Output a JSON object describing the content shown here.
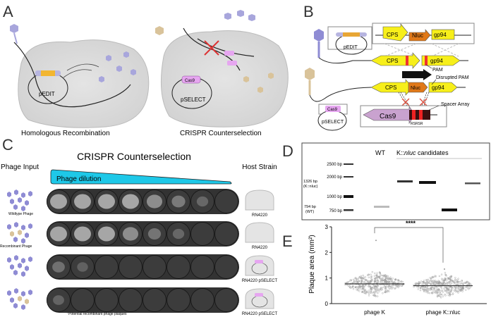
{
  "panels": {
    "a": {
      "label": "A",
      "left_caption": "Homologous Recombination",
      "right_caption": "CRISPR Counterselection",
      "plasmid_left": "pEDIT",
      "plasmid_right": "pSELECT",
      "cas9_tag": "Cas9"
    },
    "b": {
      "label": "B",
      "plasmid_top": "pEDIT",
      "plasmid_bottom": "pSELECT",
      "cas9_tag": "Cas9",
      "insert_genes": [
        "CPS",
        "Nluc",
        "gp94"
      ],
      "wt_genes": [
        "CPS",
        "gp94"
      ],
      "recomb_genes": [
        "CPS",
        "Nluc",
        "gp94"
      ],
      "pam": "PAM",
      "disrupted_pam": "Disrupted PAM",
      "spacer_array": "Spacer Array",
      "cas9": "Cas9",
      "rsrsr": "RSRSR"
    },
    "c": {
      "label": "C",
      "title": "CRISPR Counterselection",
      "phage_input": "Phage Input",
      "dilution": "Phage dilution",
      "host_strain": "Host Strain",
      "rows": [
        {
          "input_label": "Wildtype Phage",
          "host": "RN4220",
          "plaques": [
            1,
            1,
            1,
            1,
            0.8,
            0.5,
            0.2,
            0
          ]
        },
        {
          "input_label": "Recombinant Phage",
          "host": "RN4220",
          "plaques": [
            1,
            1,
            1,
            0.8,
            0.4,
            0.2,
            0,
            0
          ]
        },
        {
          "input_label": "",
          "host": "RN4220 pSELECT",
          "plaques": [
            0.35,
            0.1,
            0,
            0,
            0,
            0,
            0,
            0
          ]
        },
        {
          "input_label": "",
          "host": "RN4220 pSELECT",
          "plaques": [
            0.15,
            0,
            0,
            0,
            0,
            0,
            0,
            0
          ]
        }
      ],
      "annotation": "Potential recombinant phage plaques",
      "cas9_tag": "Cas9"
    },
    "d": {
      "label": "D",
      "wt": "WT",
      "candidates_prefix": "K::",
      "candidates_italic": "nluc",
      "candidates_suffix": " candidates",
      "ladder": [
        "2500 bp",
        "2000 bp",
        "1000 bp",
        "750 bp"
      ],
      "side_top_1": "1326 bp",
      "side_top_2": "(K::nluc)",
      "side_bottom_1": "794 bp",
      "side_bottom_2": "(WT)"
    },
    "e": {
      "label": "E",
      "significance": "****"
    }
  },
  "chart_data": {
    "type": "scatter",
    "title": "",
    "xlabel": "",
    "ylabel": "Plaque area (mm²)",
    "ylim": [
      0,
      3
    ],
    "yticks": [
      "0",
      "1",
      "2",
      "3"
    ],
    "categories": [
      "phage K",
      "phage K::nluc"
    ],
    "series": [
      {
        "name": "phage K",
        "median": 0.77,
        "min": 0.05,
        "max": 2.47
      },
      {
        "name": "phage K::nluc",
        "median": 0.7,
        "min": 0.02,
        "max": 1.35
      }
    ],
    "significance": "****"
  }
}
